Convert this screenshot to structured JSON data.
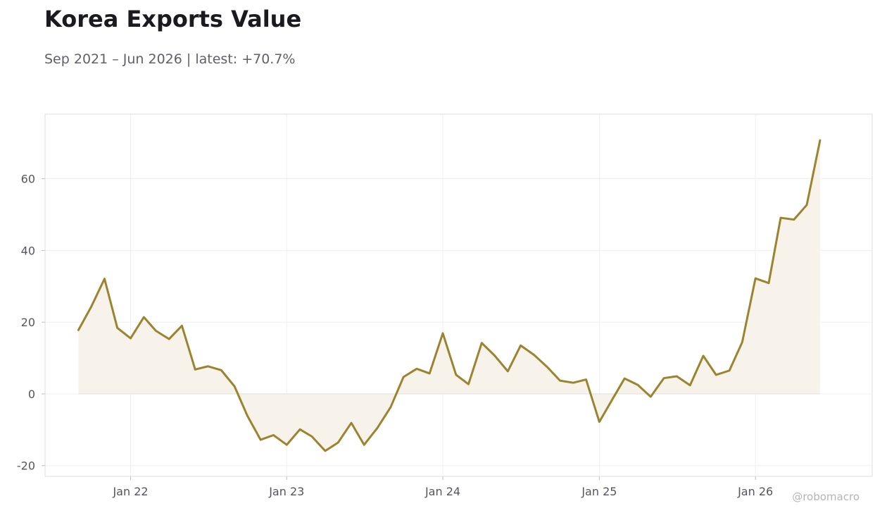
{
  "header": {
    "title": "Korea Exports Value",
    "subtitle": "Sep 2021 – Jun 2026 | latest: +70.7%"
  },
  "watermark": "@robomacro",
  "colors": {
    "line": "#9a8430",
    "fill": "#f7f3ea",
    "grid": "#efefef",
    "frame": "#dedede",
    "zero_line": "#e2e2e2"
  },
  "chart_data": {
    "type": "area",
    "title": "Korea Exports Value",
    "subtitle": "Sep 2021 – Jun 2026 | latest: +70.7%",
    "xlabel": "",
    "ylabel": "",
    "x_range": [
      "2021-06-15",
      "2026-10-01"
    ],
    "ylim": [
      -23,
      78
    ],
    "grid": true,
    "legend": "none",
    "y_ticks": [
      -20,
      0,
      20,
      40,
      60
    ],
    "y_tick_labels": [
      "-20",
      "0",
      "20",
      "40",
      "60"
    ],
    "x_ticks": [
      "2022-01-01",
      "2023-01-01",
      "2024-01-01",
      "2025-01-01",
      "2026-01-01"
    ],
    "x_tick_labels": [
      "Jan 22",
      "Jan 23",
      "Jan 24",
      "Jan 25",
      "Jan 26"
    ],
    "series": [
      {
        "x": [
          "2021-09",
          "2021-10",
          "2021-11",
          "2021-12",
          "2022-01",
          "2022-02",
          "2022-03",
          "2022-04",
          "2022-05",
          "2022-06",
          "2022-07",
          "2022-08",
          "2022-09",
          "2022-10",
          "2022-11",
          "2022-12",
          "2023-01",
          "2023-02",
          "2023-03",
          "2023-04",
          "2023-05",
          "2023-06",
          "2023-07",
          "2023-08",
          "2023-09",
          "2023-10",
          "2023-11",
          "2023-12",
          "2024-01",
          "2024-02",
          "2024-03",
          "2024-04",
          "2024-05",
          "2024-06",
          "2024-07",
          "2024-08",
          "2024-09",
          "2024-10",
          "2024-11",
          "2024-12",
          "2025-01",
          "2025-02",
          "2025-03",
          "2025-04",
          "2025-05",
          "2025-06",
          "2025-07",
          "2025-08",
          "2025-09",
          "2025-10",
          "2025-11",
          "2025-12",
          "2026-01",
          "2026-02",
          "2026-03",
          "2026-04",
          "2026-05",
          "2026-06"
        ],
        "values": [
          17.8,
          24.3,
          32.1,
          18.4,
          15.5,
          21.4,
          17.6,
          15.3,
          19.0,
          6.8,
          7.7,
          6.6,
          2.1,
          -6.1,
          -12.8,
          -11.5,
          -14.2,
          -9.9,
          -11.9,
          -15.9,
          -13.6,
          -8.1,
          -14.2,
          -9.5,
          -3.7,
          4.7,
          7.0,
          5.7,
          16.9,
          5.3,
          2.7,
          14.2,
          10.7,
          6.3,
          13.5,
          10.9,
          7.5,
          3.7,
          3.1,
          4.0,
          -7.8,
          -1.4,
          4.3,
          2.5,
          -0.8,
          4.4,
          4.9,
          2.4,
          10.6,
          5.3,
          6.5,
          14.4,
          32.2,
          30.9,
          49.1,
          48.6,
          52.7,
          70.7
        ]
      }
    ]
  }
}
